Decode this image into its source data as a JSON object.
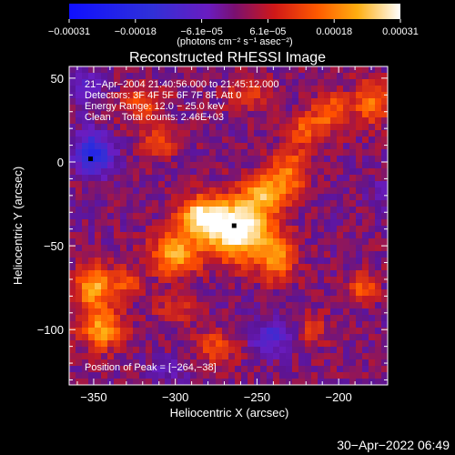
{
  "chart_data": {
    "type": "heatmap",
    "title": "Reconstructed RHESSI Image",
    "xlabel": "Heliocentric X (arcsec)",
    "ylabel": "Heliocentric Y (arcsec)",
    "xlim": [
      -365,
      -170
    ],
    "ylim": [
      -133,
      57
    ],
    "x_ticks": [
      {
        "value": -350,
        "label": "−350"
      },
      {
        "value": -300,
        "label": "−300"
      },
      {
        "value": -250,
        "label": "−250"
      },
      {
        "value": -200,
        "label": "−200"
      }
    ],
    "y_ticks": [
      {
        "value": 50,
        "label": "50"
      },
      {
        "value": 0,
        "label": "0"
      },
      {
        "value": -50,
        "label": "−50"
      },
      {
        "value": -100,
        "label": "−100"
      }
    ],
    "colorbar": {
      "min": -0.00031,
      "max": 0.00031,
      "tick_labels": [
        "−0.00031",
        "−0.00018",
        "−6.1e−05",
        "6.1e−05",
        "0.00018",
        "0.00031"
      ],
      "units": "(photons cm⁻² s⁻¹ asec⁻²)"
    },
    "annotations": [
      "21−Apr−2004 21:40:56.000 to 21:45:12.000",
      "Detectors: 3F 4F 5F 6F 7F 8F, Att 0",
      "Energy Range: 12.0 − 25.0 keV",
      "Clean    Total counts: 2.46E+03",
      "Position of Peak = [−264,−38]"
    ],
    "peak": {
      "x": -264,
      "y": -38
    },
    "sources": [
      {
        "x": -262,
        "y": -40,
        "sx": 14,
        "sy": 12,
        "amp": 0.00034
      },
      {
        "x": -285,
        "y": -33,
        "sx": 9,
        "sy": 8,
        "amp": 0.00024
      },
      {
        "x": -300,
        "y": -55,
        "sx": 10,
        "sy": 9,
        "amp": 0.0002
      },
      {
        "x": -245,
        "y": -18,
        "sx": 9,
        "sy": 8,
        "amp": 0.00018
      },
      {
        "x": -238,
        "y": -58,
        "sx": 8,
        "sy": 9,
        "amp": 0.00016
      },
      {
        "x": -230,
        "y": -5,
        "sx": 8,
        "sy": 10,
        "amp": 0.00014
      },
      {
        "x": -220,
        "y": 20,
        "sx": 7,
        "sy": 7,
        "amp": 0.00012
      },
      {
        "x": -205,
        "y": 30,
        "sx": 7,
        "sy": 8,
        "amp": 0.00013
      },
      {
        "x": -350,
        "y": -75,
        "sx": 8,
        "sy": 9,
        "amp": 0.0002
      },
      {
        "x": -345,
        "y": -100,
        "sx": 9,
        "sy": 8,
        "amp": 0.00019
      },
      {
        "x": -330,
        "y": -72,
        "sx": 6,
        "sy": 6,
        "amp": 0.00012
      },
      {
        "x": -320,
        "y": 35,
        "sx": 9,
        "sy": 8,
        "amp": 0.00011
      },
      {
        "x": -310,
        "y": 12,
        "sx": 7,
        "sy": 7,
        "amp": 0.0001
      },
      {
        "x": -180,
        "y": 35,
        "sx": 8,
        "sy": 9,
        "amp": 0.00014
      },
      {
        "x": -185,
        "y": -75,
        "sx": 6,
        "sy": 6,
        "amp": 0.00012
      },
      {
        "x": -215,
        "y": -100,
        "sx": 6,
        "sy": 7,
        "amp": 8e-05
      },
      {
        "x": -275,
        "y": -110,
        "sx": 9,
        "sy": 7,
        "amp": 0.0001
      },
      {
        "x": -300,
        "y": -88,
        "sx": 9,
        "sy": 6,
        "amp": 7e-05
      },
      {
        "x": -255,
        "y": 40,
        "sx": 9,
        "sy": 7,
        "amp": 8e-05
      },
      {
        "x": -350,
        "y": 5,
        "sx": 8,
        "sy": 8,
        "amp": -0.00022
      },
      {
        "x": -242,
        "y": -105,
        "sx": 8,
        "sy": 7,
        "amp": -0.00013
      },
      {
        "x": -355,
        "y": 45,
        "sx": 8,
        "sy": 8,
        "amp": -8e-05
      },
      {
        "x": -305,
        "y": -125,
        "sx": 8,
        "sy": 5,
        "amp": -6e-05
      },
      {
        "x": -175,
        "y": -20,
        "sx": 5,
        "sy": 7,
        "amp": -5e-05
      }
    ]
  },
  "footer": {
    "timestamp": "30−Apr−2022 06:49"
  }
}
